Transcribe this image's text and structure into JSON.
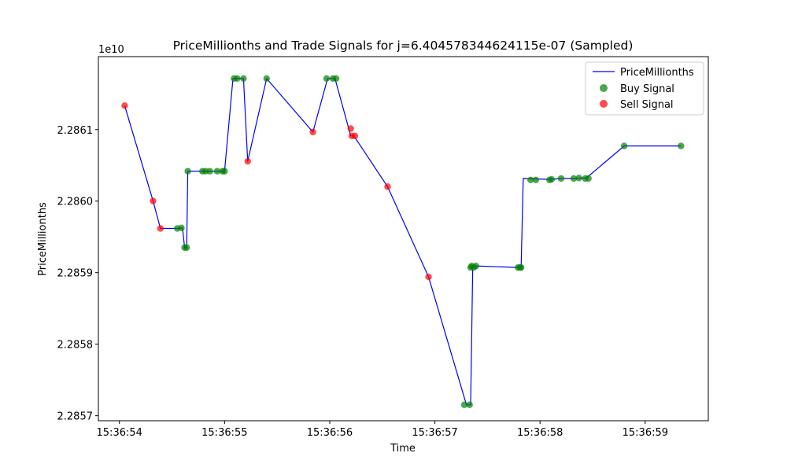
{
  "chart_data": {
    "type": "line",
    "title": "PriceMillionths and Trade Signals for j=6.404578344624115e-07 (Sampled)",
    "xlabel": "Time",
    "ylabel": "PriceMillionths",
    "y_offset_label": "1e10",
    "y_scale_factor": 10000000000,
    "x_unit": "seconds after 15:36:54",
    "xlim": [
      -0.2,
      5.6
    ],
    "ylim": [
      2.285693,
      2.286202
    ],
    "x_ticks": [
      {
        "value": 0,
        "label": "15:36:54"
      },
      {
        "value": 1,
        "label": "15:36:55"
      },
      {
        "value": 2,
        "label": "15:36:56"
      },
      {
        "value": 3,
        "label": "15:36:57"
      },
      {
        "value": 4,
        "label": "15:36:58"
      },
      {
        "value": 5,
        "label": "15:36:59"
      }
    ],
    "y_ticks": [
      {
        "value": 2.2857,
        "label": "2.2857"
      },
      {
        "value": 2.2858,
        "label": "2.2858"
      },
      {
        "value": 2.2859,
        "label": "2.2859"
      },
      {
        "value": 2.286,
        "label": "2.2860"
      },
      {
        "value": 2.2861,
        "label": "2.2861"
      }
    ],
    "grid": false,
    "legend_position": "top-right",
    "colors": {
      "line": "#0000ff",
      "buy": "#008000",
      "sell": "#ff0000"
    },
    "series": [
      {
        "name": "PriceMillionths",
        "kind": "line",
        "x": [
          0.05,
          0.32,
          0.39,
          0.55,
          0.6,
          0.62,
          0.64,
          0.65,
          0.8,
          0.85,
          0.95,
          1.0,
          1.08,
          1.12,
          1.18,
          1.22,
          1.4,
          1.84,
          1.98,
          2.05,
          2.2,
          2.23,
          2.55,
          2.94,
          3.3,
          3.34,
          3.36,
          3.4,
          3.8,
          3.82,
          3.84,
          4.1,
          4.2,
          4.33,
          4.38,
          4.44,
          4.8,
          5.34
        ],
        "y": [
          2.2861335,
          2.2860002,
          2.2859618,
          2.2859618,
          2.2859625,
          2.2859351,
          2.2859351,
          2.2860418,
          2.2860418,
          2.2860418,
          2.2860418,
          2.2860418,
          2.2861714,
          2.2861714,
          2.2861714,
          2.2860556,
          2.2861714,
          2.2860966,
          2.2861714,
          2.2861714,
          2.2860912,
          2.2860912,
          2.2860202,
          2.2858941,
          2.2857153,
          2.2857153,
          2.2859093,
          2.2859093,
          2.2859072,
          2.2859072,
          2.2860316,
          2.2860304,
          2.2860316,
          2.2860316,
          2.2860323,
          2.2860323,
          2.2860771,
          2.2860771
        ]
      },
      {
        "name": "Buy Signal",
        "kind": "scatter",
        "x": [
          0.55,
          0.59,
          0.62,
          0.64,
          0.65,
          0.79,
          0.82,
          0.86,
          0.93,
          0.98,
          1.0,
          1.09,
          1.12,
          1.18,
          1.4,
          1.97,
          2.03,
          2.06,
          3.28,
          3.33,
          3.34,
          3.35,
          3.37,
          3.39,
          3.79,
          3.81,
          3.82,
          3.91,
          3.96,
          4.09,
          4.11,
          4.2,
          4.32,
          4.37,
          4.43,
          4.46,
          4.8,
          5.34
        ],
        "y": [
          2.2859618,
          2.2859625,
          2.2859351,
          2.2859351,
          2.2860418,
          2.2860418,
          2.2860418,
          2.2860418,
          2.2860418,
          2.2860418,
          2.2860418,
          2.2861714,
          2.2861714,
          2.2861714,
          2.2861714,
          2.2861714,
          2.2861714,
          2.2861714,
          2.2857153,
          2.2857153,
          2.2859072,
          2.2859093,
          2.2859072,
          2.2859093,
          2.2859072,
          2.2859072,
          2.2859072,
          2.2860296,
          2.2860296,
          2.2860296,
          2.2860304,
          2.2860316,
          2.2860316,
          2.2860323,
          2.2860316,
          2.2860316,
          2.2860771,
          2.2860771
        ]
      },
      {
        "name": "Sell Signal",
        "kind": "scatter",
        "x": [
          0.05,
          0.32,
          0.39,
          1.22,
          1.84,
          2.2,
          2.21,
          2.24,
          2.55,
          2.94
        ],
        "y": [
          2.2861335,
          2.2860002,
          2.2859618,
          2.2860556,
          2.2860966,
          2.2861014,
          2.2860912,
          2.2860912,
          2.2860202,
          2.2858941
        ]
      }
    ]
  }
}
